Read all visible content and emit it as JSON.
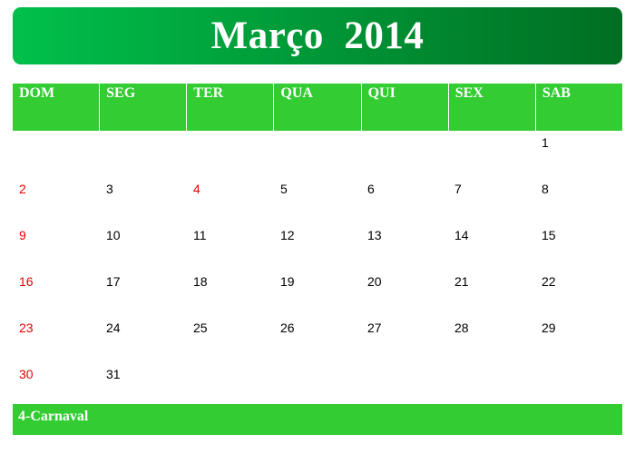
{
  "title": "Março  2014",
  "colors": {
    "banner_start": "#00c04b",
    "banner_end": "#006e22",
    "header_bg": "#33cc33",
    "holiday_text": "#e60000",
    "normal_text": "#000000"
  },
  "weekdays": [
    "DOM",
    "SEG",
    "TER",
    "QUA",
    "QUI",
    "SEX",
    "SAB"
  ],
  "weeks": [
    [
      {
        "day": "",
        "red": false
      },
      {
        "day": "",
        "red": false
      },
      {
        "day": "",
        "red": false
      },
      {
        "day": "",
        "red": false
      },
      {
        "day": "",
        "red": false
      },
      {
        "day": "",
        "red": false
      },
      {
        "day": "1",
        "red": false
      }
    ],
    [
      {
        "day": "2",
        "red": true
      },
      {
        "day": "3",
        "red": false
      },
      {
        "day": "4",
        "red": true
      },
      {
        "day": "5",
        "red": false
      },
      {
        "day": "6",
        "red": false
      },
      {
        "day": "7",
        "red": false
      },
      {
        "day": "8",
        "red": false
      }
    ],
    [
      {
        "day": "9",
        "red": true
      },
      {
        "day": "10",
        "red": false
      },
      {
        "day": "11",
        "red": false
      },
      {
        "day": "12",
        "red": false
      },
      {
        "day": "13",
        "red": false
      },
      {
        "day": "14",
        "red": false
      },
      {
        "day": "15",
        "red": false
      }
    ],
    [
      {
        "day": "16",
        "red": true
      },
      {
        "day": "17",
        "red": false
      },
      {
        "day": "18",
        "red": false
      },
      {
        "day": "19",
        "red": false
      },
      {
        "day": "20",
        "red": false
      },
      {
        "day": "21",
        "red": false
      },
      {
        "day": "22",
        "red": false
      }
    ],
    [
      {
        "day": "23",
        "red": true
      },
      {
        "day": "24",
        "red": false
      },
      {
        "day": "25",
        "red": false
      },
      {
        "day": "26",
        "red": false
      },
      {
        "day": "27",
        "red": false
      },
      {
        "day": "28",
        "red": false
      },
      {
        "day": "29",
        "red": false
      }
    ],
    [
      {
        "day": "30",
        "red": true
      },
      {
        "day": "31",
        "red": false
      },
      {
        "day": "",
        "red": false
      },
      {
        "day": "",
        "red": false
      },
      {
        "day": "",
        "red": false
      },
      {
        "day": "",
        "red": false
      },
      {
        "day": "",
        "red": false
      }
    ]
  ],
  "holidays_note": "4-Carnaval"
}
